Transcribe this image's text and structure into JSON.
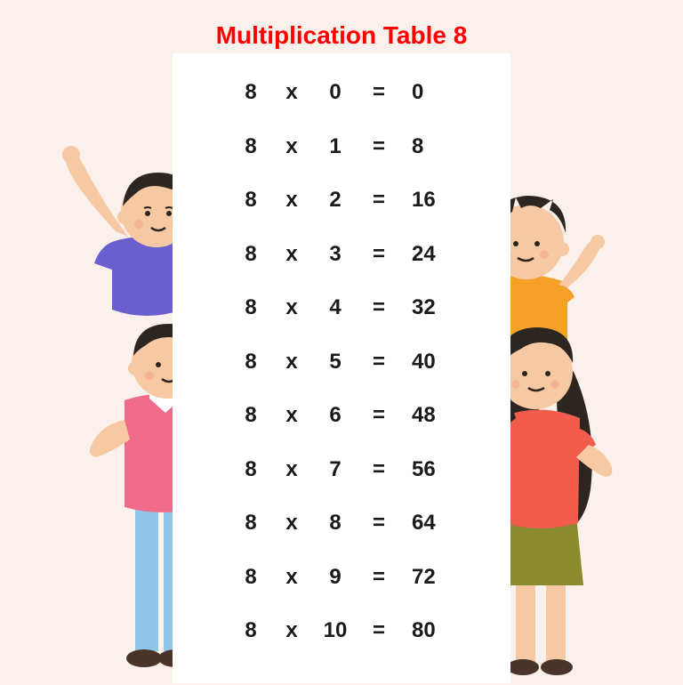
{
  "title": "Multiplication Table 8",
  "colors": {
    "title": "#ff0000",
    "page_bg": "#faf0ec",
    "board_bg": "#ffffff",
    "text": "#1a1a1a",
    "skin": "#f7c9a3",
    "hair_dark": "#2d2620",
    "purple": "#6a5fcf",
    "pink": "#f06a8a",
    "blue_pants": "#8fc6e8",
    "orange": "#f5a128",
    "olive": "#8a8a2e",
    "coral": "#f25c4d",
    "brown_shoe": "#4a342a"
  },
  "table": {
    "base": 8,
    "operator": "x",
    "equals": "=",
    "rows": [
      {
        "a": 8,
        "b": 0,
        "result": 0
      },
      {
        "a": 8,
        "b": 1,
        "result": 8
      },
      {
        "a": 8,
        "b": 2,
        "result": 16
      },
      {
        "a": 8,
        "b": 3,
        "result": 24
      },
      {
        "a": 8,
        "b": 4,
        "result": 32
      },
      {
        "a": 8,
        "b": 5,
        "result": 40
      },
      {
        "a": 8,
        "b": 6,
        "result": 48
      },
      {
        "a": 8,
        "b": 7,
        "result": 56
      },
      {
        "a": 8,
        "b": 8,
        "result": 64
      },
      {
        "a": 8,
        "b": 9,
        "result": 72
      },
      {
        "a": 8,
        "b": 10,
        "result": 80
      }
    ],
    "fontsize": 24,
    "fontweight": "bold",
    "row_height": 60.5
  },
  "typography": {
    "title_fontsize": 28,
    "title_fontweight": "bold",
    "font_family": "Arial"
  }
}
